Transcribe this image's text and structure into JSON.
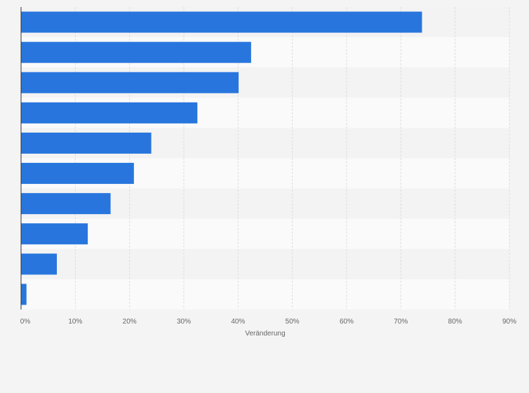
{
  "chart_data": {
    "type": "bar",
    "orientation": "horizontal",
    "title": "",
    "xlabel": "Veränderung",
    "ylabel": "",
    "xlim": [
      0,
      90
    ],
    "x_ticks": [
      0,
      10,
      20,
      30,
      40,
      50,
      60,
      70,
      80,
      90
    ],
    "x_tick_labels": [
      "0%",
      "10%",
      "20%",
      "30%",
      "40%",
      "50%",
      "60%",
      "70%",
      "80%",
      "90%"
    ],
    "categories": [
      "",
      "",
      "",
      "",
      "",
      "",
      "",
      "",
      "",
      ""
    ],
    "values": [
      73.9,
      42.4,
      40.1,
      32.5,
      24.0,
      20.8,
      16.5,
      12.3,
      6.6,
      1.0
    ],
    "grid": true,
    "legend": "none",
    "colors": {
      "bar": "#2876dd",
      "band_light": "#fafafa",
      "band_dark": "#f3f3f3",
      "grid": "#dddddd",
      "axis": "#333333",
      "background": "#f4f4f4"
    }
  }
}
